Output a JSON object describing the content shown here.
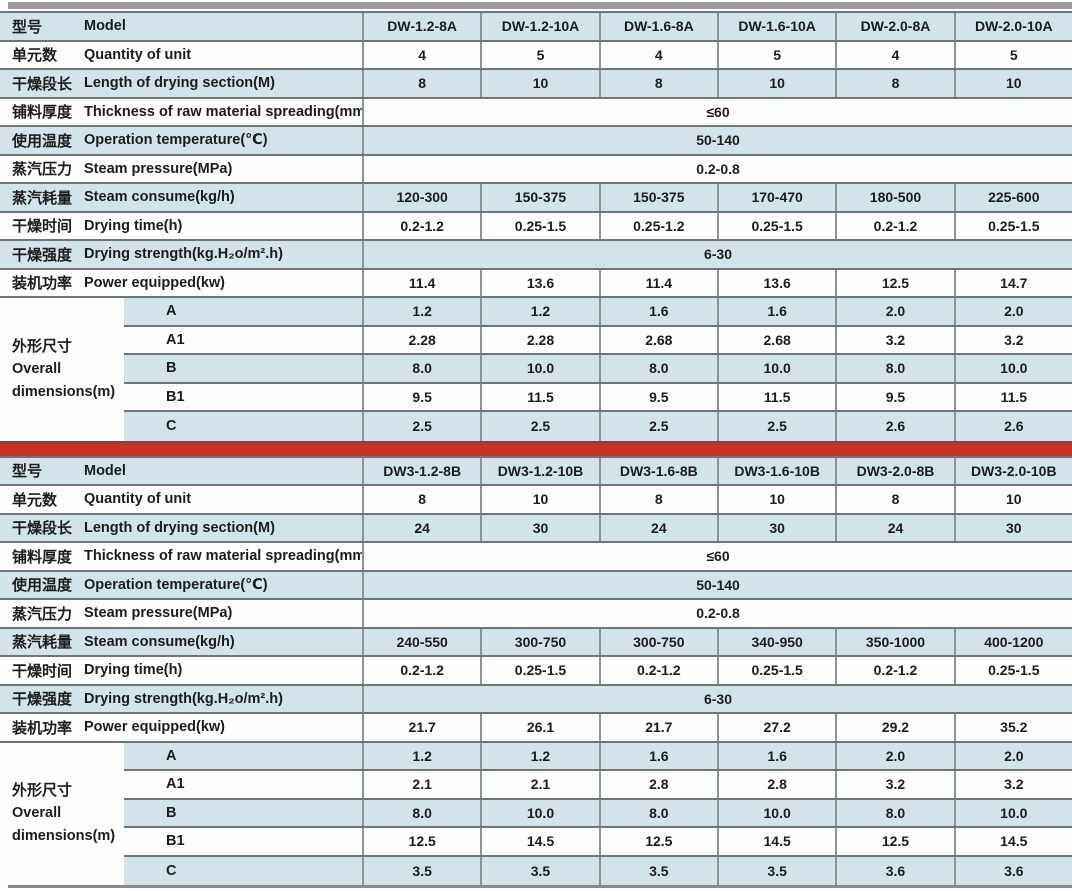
{
  "colors": {
    "row_highlight": "#d2e4e9",
    "divider_bar_red": "#c93122",
    "rule_gray": "#9c9c9c",
    "grid_line": "#6f7577"
  },
  "tables": [
    {
      "series": "A",
      "rows": [
        {
          "key": "model",
          "kind": "models",
          "cn": "型号",
          "en": "Model",
          "cells": [
            "DW-1.2-8A",
            "DW-1.2-10A",
            "DW-1.6-8A",
            "DW-1.6-10A",
            "DW-2.0-8A",
            "DW-2.0-10A"
          ]
        },
        {
          "key": "quantity-of-unit",
          "kind": "values",
          "cn": "单元数",
          "en": "Quantity of unit",
          "cells": [
            "4",
            "5",
            "4",
            "5",
            "4",
            "5"
          ]
        },
        {
          "key": "drying-section-length",
          "kind": "values",
          "cn": "干燥段长",
          "en": "Length of drying section(M)",
          "cells": [
            "8",
            "10",
            "8",
            "10",
            "8",
            "10"
          ]
        },
        {
          "key": "spreading-thickness",
          "kind": "span",
          "cn": "铺料厚度",
          "en": "Thickness of raw material spreading(mm)",
          "cells": [
            "≤60"
          ]
        },
        {
          "key": "operation-temperature",
          "kind": "span",
          "cn": "使用温度",
          "en": "Operation temperature(℃)",
          "cells": [
            "50-140"
          ]
        },
        {
          "key": "steam-pressure",
          "kind": "span",
          "cn": "蒸汽压力",
          "en": "Steam pressure(MPa)",
          "cells": [
            "0.2-0.8"
          ]
        },
        {
          "key": "steam-consume",
          "kind": "values",
          "cn": "蒸汽耗量",
          "en": "Steam consume(kg/h)",
          "cells": [
            "120-300",
            "150-375",
            "150-375",
            "170-470",
            "180-500",
            "225-600"
          ]
        },
        {
          "key": "drying-time",
          "kind": "values",
          "cn": "干燥时间",
          "en": "Drying time(h)",
          "cells": [
            "0.2-1.2",
            "0.25-1.5",
            "0.25-1.2",
            "0.25-1.5",
            "0.2-1.2",
            "0.25-1.5"
          ]
        },
        {
          "key": "drying-strength",
          "kind": "span",
          "cn": "干燥强度",
          "en": "Drying strength(kg.H₂o/m².h)",
          "cells": [
            "6-30"
          ]
        },
        {
          "key": "power-equipped",
          "kind": "values",
          "cn": "装机功率",
          "en": "Power equipped(kw)",
          "cells": [
            "11.4",
            "13.6",
            "11.4",
            "13.6",
            "12.5",
            "14.7"
          ]
        }
      ],
      "dims": {
        "cn": "外形尺寸",
        "en1": "Overall",
        "en2": "dimensions(m)",
        "rows": [
          {
            "key": "a",
            "sub": "A",
            "cells": [
              "1.2",
              "1.2",
              "1.6",
              "1.6",
              "2.0",
              "2.0"
            ]
          },
          {
            "key": "a1",
            "sub": "A1",
            "cells": [
              "2.28",
              "2.28",
              "2.68",
              "2.68",
              "3.2",
              "3.2"
            ]
          },
          {
            "key": "b",
            "sub": "B",
            "cells": [
              "8.0",
              "10.0",
              "8.0",
              "10.0",
              "8.0",
              "10.0"
            ]
          },
          {
            "key": "b1",
            "sub": "B1",
            "cells": [
              "9.5",
              "11.5",
              "9.5",
              "11.5",
              "9.5",
              "11.5"
            ]
          },
          {
            "key": "c",
            "sub": "C",
            "cells": [
              "2.5",
              "2.5",
              "2.5",
              "2.5",
              "2.6",
              "2.6"
            ]
          }
        ]
      }
    },
    {
      "series": "B",
      "rows": [
        {
          "key": "model",
          "kind": "models",
          "cn": "型号",
          "en": "Model",
          "cells": [
            "DW3-1.2-8B",
            "DW3-1.2-10B",
            "DW3-1.6-8B",
            "DW3-1.6-10B",
            "DW3-2.0-8B",
            "DW3-2.0-10B"
          ]
        },
        {
          "key": "quantity-of-unit",
          "kind": "values",
          "cn": "单元数",
          "en": "Quantity of unit",
          "cells": [
            "8",
            "10",
            "8",
            "10",
            "8",
            "10"
          ]
        },
        {
          "key": "drying-section-length",
          "kind": "values",
          "cn": "干燥段长",
          "en": "Length of drying section(M)",
          "cells": [
            "24",
            "30",
            "24",
            "30",
            "24",
            "30"
          ]
        },
        {
          "key": "spreading-thickness",
          "kind": "span",
          "cn": "铺料厚度",
          "en": "Thickness of raw material spreading(mm)",
          "cells": [
            "≤60"
          ]
        },
        {
          "key": "operation-temperature",
          "kind": "span",
          "cn": "使用温度",
          "en": "Operation temperature(℃)",
          "cells": [
            "50-140"
          ]
        },
        {
          "key": "steam-pressure",
          "kind": "span",
          "cn": "蒸汽压力",
          "en": "Steam pressure(MPa)",
          "cells": [
            "0.2-0.8"
          ]
        },
        {
          "key": "steam-consume",
          "kind": "values",
          "cn": "蒸汽耗量",
          "en": "Steam consume(kg/h)",
          "cells": [
            "240-550",
            "300-750",
            "300-750",
            "340-950",
            "350-1000",
            "400-1200"
          ]
        },
        {
          "key": "drying-time",
          "kind": "values",
          "cn": "干燥时间",
          "en": "Drying time(h)",
          "cells": [
            "0.2-1.2",
            "0.25-1.5",
            "0.2-1.2",
            "0.25-1.5",
            "0.2-1.2",
            "0.25-1.5"
          ]
        },
        {
          "key": "drying-strength",
          "kind": "span",
          "cn": "干燥强度",
          "en": "Drying strength(kg.H₂o/m².h)",
          "cells": [
            "6-30"
          ]
        },
        {
          "key": "power-equipped",
          "kind": "values",
          "cn": "装机功率",
          "en": "Power equipped(kw)",
          "cells": [
            "21.7",
            "26.1",
            "21.7",
            "27.2",
            "29.2",
            "35.2"
          ]
        }
      ],
      "dims": {
        "cn": "外形尺寸",
        "en1": "Overall",
        "en2": "dimensions(m)",
        "rows": [
          {
            "key": "a",
            "sub": "A",
            "cells": [
              "1.2",
              "1.2",
              "1.6",
              "1.6",
              "2.0",
              "2.0"
            ]
          },
          {
            "key": "a1",
            "sub": "A1",
            "cells": [
              "2.1",
              "2.1",
              "2.8",
              "2.8",
              "3.2",
              "3.2"
            ]
          },
          {
            "key": "b",
            "sub": "B",
            "cells": [
              "8.0",
              "10.0",
              "8.0",
              "10.0",
              "8.0",
              "10.0"
            ]
          },
          {
            "key": "b1",
            "sub": "B1",
            "cells": [
              "12.5",
              "14.5",
              "12.5",
              "14.5",
              "12.5",
              "14.5"
            ]
          },
          {
            "key": "c",
            "sub": "C",
            "cells": [
              "3.5",
              "3.5",
              "3.5",
              "3.5",
              "3.6",
              "3.6"
            ]
          }
        ]
      }
    }
  ]
}
